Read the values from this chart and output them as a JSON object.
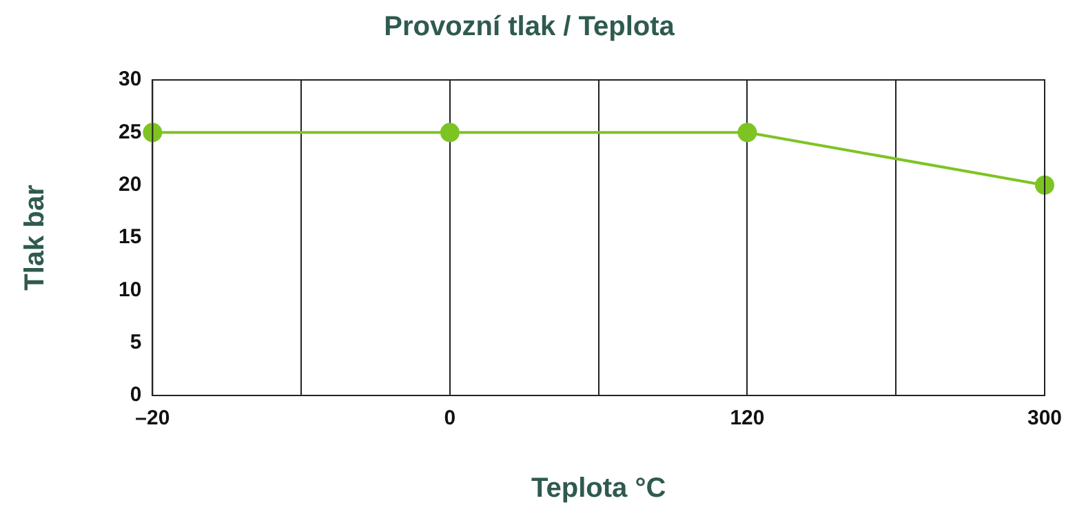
{
  "chart_data": {
    "type": "line",
    "title": "Provozní tlak / Teplota",
    "xlabel": "Teplota °C",
    "ylabel": "Tlak bar",
    "categories": [
      "–20",
      null,
      "0",
      null,
      "120",
      null,
      "300"
    ],
    "series": [
      {
        "color": "#7dc423",
        "values": [
          25,
          null,
          25,
          null,
          25,
          null,
          20
        ]
      }
    ],
    "ylim": [
      0,
      30
    ],
    "yticks": [
      0,
      5,
      10,
      15,
      20,
      25,
      30
    ],
    "grid": "x",
    "marker": "circle",
    "line_style": "solid"
  }
}
